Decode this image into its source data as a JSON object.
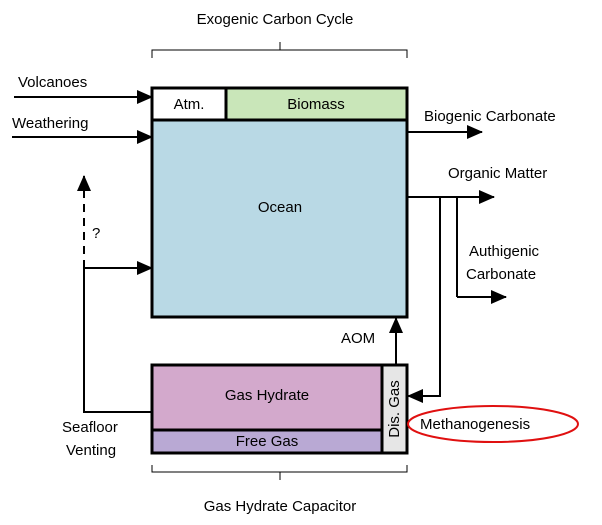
{
  "top_label": "Exogenic Carbon Cycle",
  "bottom_label": "Gas Hydrate Capacitor",
  "boxes": {
    "atmosphere": "Atm.",
    "biomass": "Biomass",
    "ocean": "Ocean",
    "gas_hydrate": "Gas Hydrate",
    "free_gas": "Free Gas",
    "dissolved_gas": "Dis. Gas"
  },
  "inputs": {
    "volcanoes": "Volcanoes",
    "weathering": "Weathering"
  },
  "outputs": {
    "biogenic_carbonate": "Biogenic Carbonate",
    "organic_matter": "Organic Matter",
    "authigenic_carbonate": [
      "Authigenic",
      "Carbonate"
    ]
  },
  "processes": {
    "aom": "AOM",
    "methanogenesis": "Methanogenesis",
    "seafloor_venting": [
      "Seafloor",
      "Venting"
    ],
    "unknown": "?"
  }
}
